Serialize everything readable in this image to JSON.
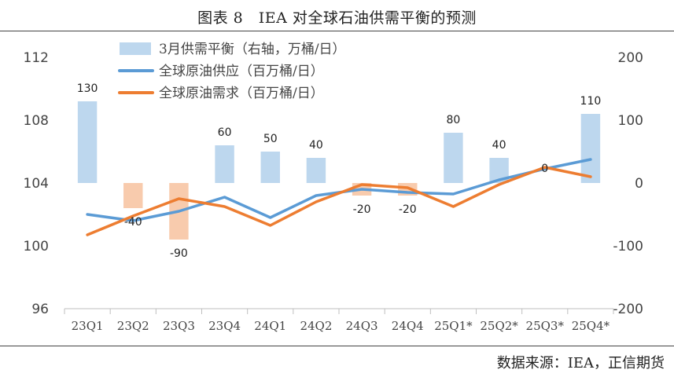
{
  "header": {
    "title": "图表 8　IEA 对全球石油供需平衡的预测"
  },
  "footer": {
    "source": "数据来源：IEA，正信期货"
  },
  "colors": {
    "bar_positive": "#bdd7ee",
    "bar_negative": "#f8cbad",
    "supply_line": "#5b9bd5",
    "demand_line": "#ed7d31"
  },
  "chart_data": {
    "type": "bar+line",
    "categories": [
      "23Q1",
      "23Q2",
      "23Q3",
      "23Q4",
      "24Q1",
      "24Q2",
      "24Q3",
      "24Q4",
      "25Q1*",
      "25Q2*",
      "25Q3*",
      "25Q4*"
    ],
    "left_axis": {
      "ylim": [
        96,
        112
      ],
      "ticks": [
        96,
        100,
        104,
        108,
        112
      ]
    },
    "right_axis": {
      "ylim": [
        -200,
        200
      ],
      "ticks": [
        -200,
        -100,
        0,
        100,
        200
      ]
    },
    "legend_position": "top",
    "series": [
      {
        "name": "3月供需平衡（右轴，万桶/日）",
        "kind": "bar",
        "axis": "right",
        "values": [
          130,
          -40,
          -90,
          60,
          50,
          40,
          -20,
          -20,
          80,
          40,
          0,
          110
        ],
        "labels": [
          "130",
          "-40",
          "-90",
          "60",
          "50",
          "40",
          "-20",
          "-20",
          "80",
          "40",
          "0",
          "110"
        ]
      },
      {
        "name": "全球原油供应（百万桶/日）",
        "kind": "line",
        "axis": "left",
        "values": [
          102.0,
          101.6,
          102.2,
          103.1,
          101.8,
          103.2,
          103.6,
          103.4,
          103.3,
          104.2,
          104.9,
          105.5
        ]
      },
      {
        "name": "全球原油需求（百万桶/日）",
        "kind": "line",
        "axis": "left",
        "values": [
          100.7,
          101.9,
          103.0,
          102.5,
          101.3,
          102.8,
          103.9,
          103.7,
          102.5,
          103.9,
          105.0,
          104.4
        ]
      }
    ]
  }
}
